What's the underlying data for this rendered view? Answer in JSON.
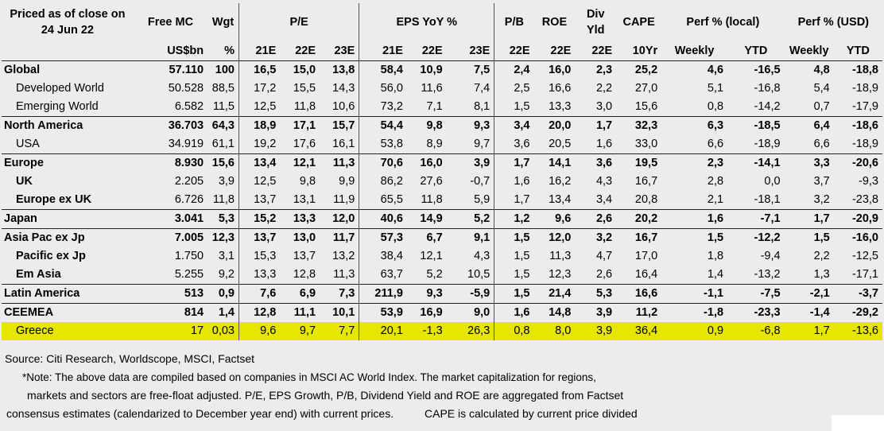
{
  "header": {
    "priced_line1": "Priced as of close on",
    "priced_line2": "24 Jun 22",
    "free_mc": "Free MC",
    "wgt": "Wgt",
    "pe": "P/E",
    "eps": "EPS YoY %",
    "pb": "P/B",
    "roe": "ROE",
    "div_line1": "Div",
    "div_line2": "Yld",
    "cape": "CAPE",
    "perf_local": "Perf % (local)",
    "perf_usd": "Perf % (USD)"
  },
  "subheader": [
    "US$bn",
    "%",
    "21E",
    "22E",
    "23E",
    "21E",
    "22E",
    "23E",
    "22E",
    "22E",
    "22E",
    "10Yr",
    "Weekly",
    "YTD",
    "Weekly",
    "YTD"
  ],
  "rows": [
    {
      "name": "Global",
      "style": "bold",
      "values": [
        "57.110",
        "100",
        "16,5",
        "15,0",
        "13,8",
        "58,4",
        "10,9",
        "7,5",
        "2,4",
        "16,0",
        "2,3",
        "25,2",
        "4,6",
        "-16,5",
        "4,8",
        "-18,8"
      ]
    },
    {
      "name": "Developed World",
      "style": "ind",
      "values": [
        "50.528",
        "88,5",
        "17,2",
        "15,5",
        "14,3",
        "56,0",
        "11,6",
        "7,4",
        "2,5",
        "16,6",
        "2,2",
        "27,0",
        "5,1",
        "-16,8",
        "5,4",
        "-18,9"
      ]
    },
    {
      "name": "Emerging World",
      "style": "ind",
      "values": [
        "6.582",
        "11,5",
        "12,5",
        "11,8",
        "10,6",
        "73,2",
        "7,1",
        "8,1",
        "1,5",
        "13,3",
        "3,0",
        "15,6",
        "0,8",
        "-14,2",
        "0,7",
        "-17,9"
      ]
    },
    {
      "name": "North America",
      "style": "bold",
      "values": [
        "36.703",
        "64,3",
        "18,9",
        "17,1",
        "15,7",
        "54,4",
        "9,8",
        "9,3",
        "3,4",
        "20,0",
        "1,7",
        "32,3",
        "6,3",
        "-18,5",
        "6,4",
        "-18,6"
      ]
    },
    {
      "name": "USA",
      "style": "ind",
      "values": [
        "34.919",
        "61,1",
        "19,2",
        "17,6",
        "16,1",
        "53,8",
        "8,9",
        "9,7",
        "3,6",
        "20,5",
        "1,6",
        "33,0",
        "6,6",
        "-18,9",
        "6,6",
        "-18,9"
      ]
    },
    {
      "name": "Europe",
      "style": "bold",
      "values": [
        "8.930",
        "15,6",
        "13,4",
        "12,1",
        "11,3",
        "70,6",
        "16,0",
        "3,9",
        "1,7",
        "14,1",
        "3,6",
        "19,5",
        "2,3",
        "-14,1",
        "3,3",
        "-20,6"
      ]
    },
    {
      "name": "UK",
      "style": "sub",
      "values": [
        "2.205",
        "3,9",
        "12,5",
        "9,8",
        "9,9",
        "86,2",
        "27,6",
        "-0,7",
        "1,6",
        "16,2",
        "4,3",
        "16,7",
        "2,8",
        "0,0",
        "3,7",
        "-9,3"
      ]
    },
    {
      "name": "Europe ex UK",
      "style": "sub",
      "values": [
        "6.726",
        "11,8",
        "13,7",
        "13,1",
        "11,9",
        "65,5",
        "11,8",
        "5,9",
        "1,7",
        "13,4",
        "3,4",
        "20,8",
        "2,1",
        "-18,1",
        "3,2",
        "-23,8"
      ]
    },
    {
      "name": "Japan",
      "style": "bold",
      "values": [
        "3.041",
        "5,3",
        "15,2",
        "13,3",
        "12,0",
        "40,6",
        "14,9",
        "5,2",
        "1,2",
        "9,6",
        "2,6",
        "20,2",
        "1,6",
        "-7,1",
        "1,7",
        "-20,9"
      ]
    },
    {
      "name": "Asia Pac ex Jp",
      "style": "bold",
      "values": [
        "7.005",
        "12,3",
        "13,7",
        "13,0",
        "11,7",
        "57,3",
        "6,7",
        "9,1",
        "1,5",
        "12,0",
        "3,2",
        "16,7",
        "1,5",
        "-12,2",
        "1,5",
        "-16,0"
      ]
    },
    {
      "name": "Pacific ex Jp",
      "style": "sub",
      "values": [
        "1.750",
        "3,1",
        "15,3",
        "13,7",
        "13,2",
        "38,4",
        "12,1",
        "4,3",
        "1,5",
        "11,3",
        "4,7",
        "17,0",
        "1,8",
        "-9,4",
        "2,2",
        "-12,5"
      ]
    },
    {
      "name": "Em Asia",
      "style": "sub",
      "values": [
        "5.255",
        "9,2",
        "13,3",
        "12,8",
        "11,3",
        "63,7",
        "5,2",
        "10,5",
        "1,5",
        "12,3",
        "2,6",
        "16,4",
        "1,4",
        "-13,2",
        "1,3",
        "-17,1"
      ]
    },
    {
      "name": "Latin America",
      "style": "bold",
      "values": [
        "513",
        "0,9",
        "7,6",
        "6,9",
        "7,3",
        "211,9",
        "9,3",
        "-5,9",
        "1,5",
        "21,4",
        "5,3",
        "16,6",
        "-1,1",
        "-7,5",
        "-2,1",
        "-3,7"
      ]
    },
    {
      "name": "CEEMEA",
      "style": "bold",
      "values": [
        "814",
        "1,4",
        "12,8",
        "11,1",
        "10,1",
        "53,9",
        "16,9",
        "9,0",
        "1,6",
        "14,8",
        "3,9",
        "11,2",
        "-1,8",
        "-23,3",
        "-1,4",
        "-29,2"
      ]
    },
    {
      "name": "Greece",
      "style": "highlight",
      "values": [
        "17",
        "0,03",
        "9,6",
        "9,7",
        "7,7",
        "20,1",
        "-1,3",
        "26,3",
        "0,8",
        "8,0",
        "3,9",
        "36,4",
        "0,9",
        "-6,8",
        "1,7",
        "-13,6"
      ]
    }
  ],
  "notes": {
    "source": "Source: Citi Research, Worldscope, MSCI, Factset",
    "line1": "*Note: The above data are compiled based on companies in MSCI AC World Index. The market capitalization for regions,",
    "line2": "markets and sectors are free-float adjusted. P/E, EPS Growth, P/B, Dividend Yield and ROE are aggregated from Factset",
    "line3": "consensus estimates (calendarized to December year end) with current prices.          CAPE is calculated by current price divided"
  },
  "colors": {
    "highlight": "#e6e600",
    "background": "#ececec"
  }
}
